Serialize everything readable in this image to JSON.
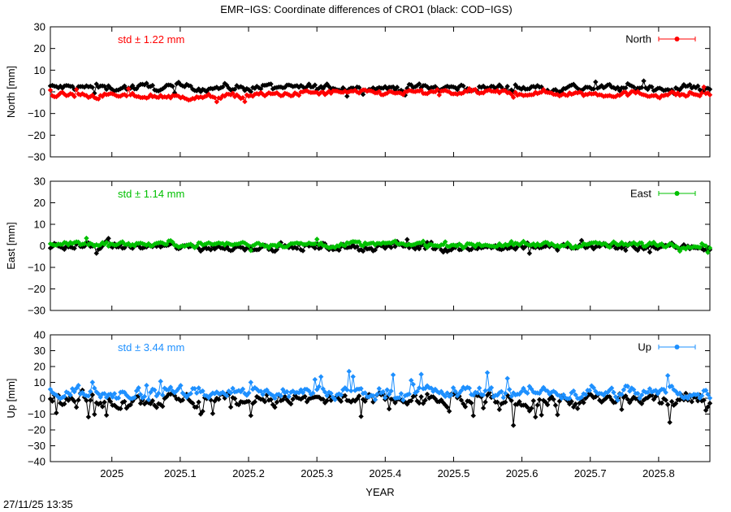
{
  "chart_data": {
    "type": "scatter",
    "title": "EMR−IGS: Coordinate differences of CRO1 (black: COD−IGS)",
    "xlabel": "YEAR",
    "xlim": [
      2024.91,
      2025.875
    ],
    "xticks": [
      2025,
      2025.1,
      2025.2,
      2025.3,
      2025.4,
      2025.5,
      2025.6,
      2025.7,
      2025.8
    ],
    "xtick_labels": [
      "2025",
      "2025.1",
      "2025.2",
      "2025.3",
      "2025.4",
      "2025.5",
      "2025.6",
      "2025.7",
      "2025.8"
    ],
    "grid": false,
    "legend_position": "top-right",
    "panels": [
      {
        "name": "north",
        "ylabel": "North [mm]",
        "ylim": [
          -30,
          30
        ],
        "yticks": [
          -30,
          -20,
          -10,
          0,
          10,
          20,
          30
        ],
        "ytick_labels": [
          "−30",
          "−20",
          "−10",
          "0",
          "10",
          "20",
          "30"
        ],
        "std_label": "std ± 1.22 mm",
        "series": [
          {
            "name": "North",
            "color": "#ff0000",
            "std": 1.22,
            "base": -1.2,
            "amp": 1.1,
            "mean_shift": [
              [
                2024.91,
                -1.5
              ],
              [
                2025.15,
                -2.5
              ],
              [
                2025.3,
                -0.5
              ],
              [
                2025.5,
                -0.3
              ],
              [
                2025.875,
                -1.3
              ]
            ]
          },
          {
            "color": "#000000",
            "base": 2.0,
            "amp": 1.4,
            "mean_shift": [
              [
                2024.91,
                2.0
              ],
              [
                2025.875,
                1.8
              ]
            ]
          }
        ]
      },
      {
        "name": "east",
        "ylabel": "East [mm]",
        "ylim": [
          -30,
          30
        ],
        "yticks": [
          -30,
          -20,
          -10,
          0,
          10,
          20,
          30
        ],
        "ytick_labels": [
          "−30",
          "−20",
          "−10",
          "0",
          "10",
          "20",
          "30"
        ],
        "std_label": "std ± 1.14 mm",
        "series": [
          {
            "name": "East",
            "color": "#00c000",
            "std": 1.14,
            "base": 0.6,
            "amp": 1.1,
            "mean_shift": [
              [
                2024.91,
                1.0
              ],
              [
                2025.875,
                0.4
              ]
            ]
          },
          {
            "color": "#000000",
            "base": -0.4,
            "amp": 1.5,
            "mean_shift": [
              [
                2024.91,
                -0.5
              ],
              [
                2025.875,
                -0.6
              ]
            ]
          }
        ]
      },
      {
        "name": "up",
        "ylabel": "Up [mm]",
        "ylim": [
          -40,
          40
        ],
        "yticks": [
          -40,
          -30,
          -20,
          -10,
          0,
          10,
          20,
          30,
          40
        ],
        "ytick_labels": [
          "−40",
          "−30",
          "−20",
          "−10",
          "0",
          "10",
          "20",
          "30",
          "40"
        ],
        "std_label": "std ± 3.44 mm",
        "series": [
          {
            "name": "Up",
            "color": "#1e90ff",
            "std": 3.44,
            "base": 3.5,
            "amp": 3.4,
            "mean_shift": [
              [
                2024.91,
                4.0
              ],
              [
                2025.875,
                3.5
              ]
            ]
          },
          {
            "color": "#000000",
            "base": -1.0,
            "amp": 3.8,
            "mean_shift": [
              [
                2024.91,
                -1.0
              ],
              [
                2025.875,
                -1.5
              ]
            ]
          }
        ]
      }
    ],
    "points_per_series": 330
  },
  "footer": {
    "timestamp": "27/11/25 13:35"
  }
}
